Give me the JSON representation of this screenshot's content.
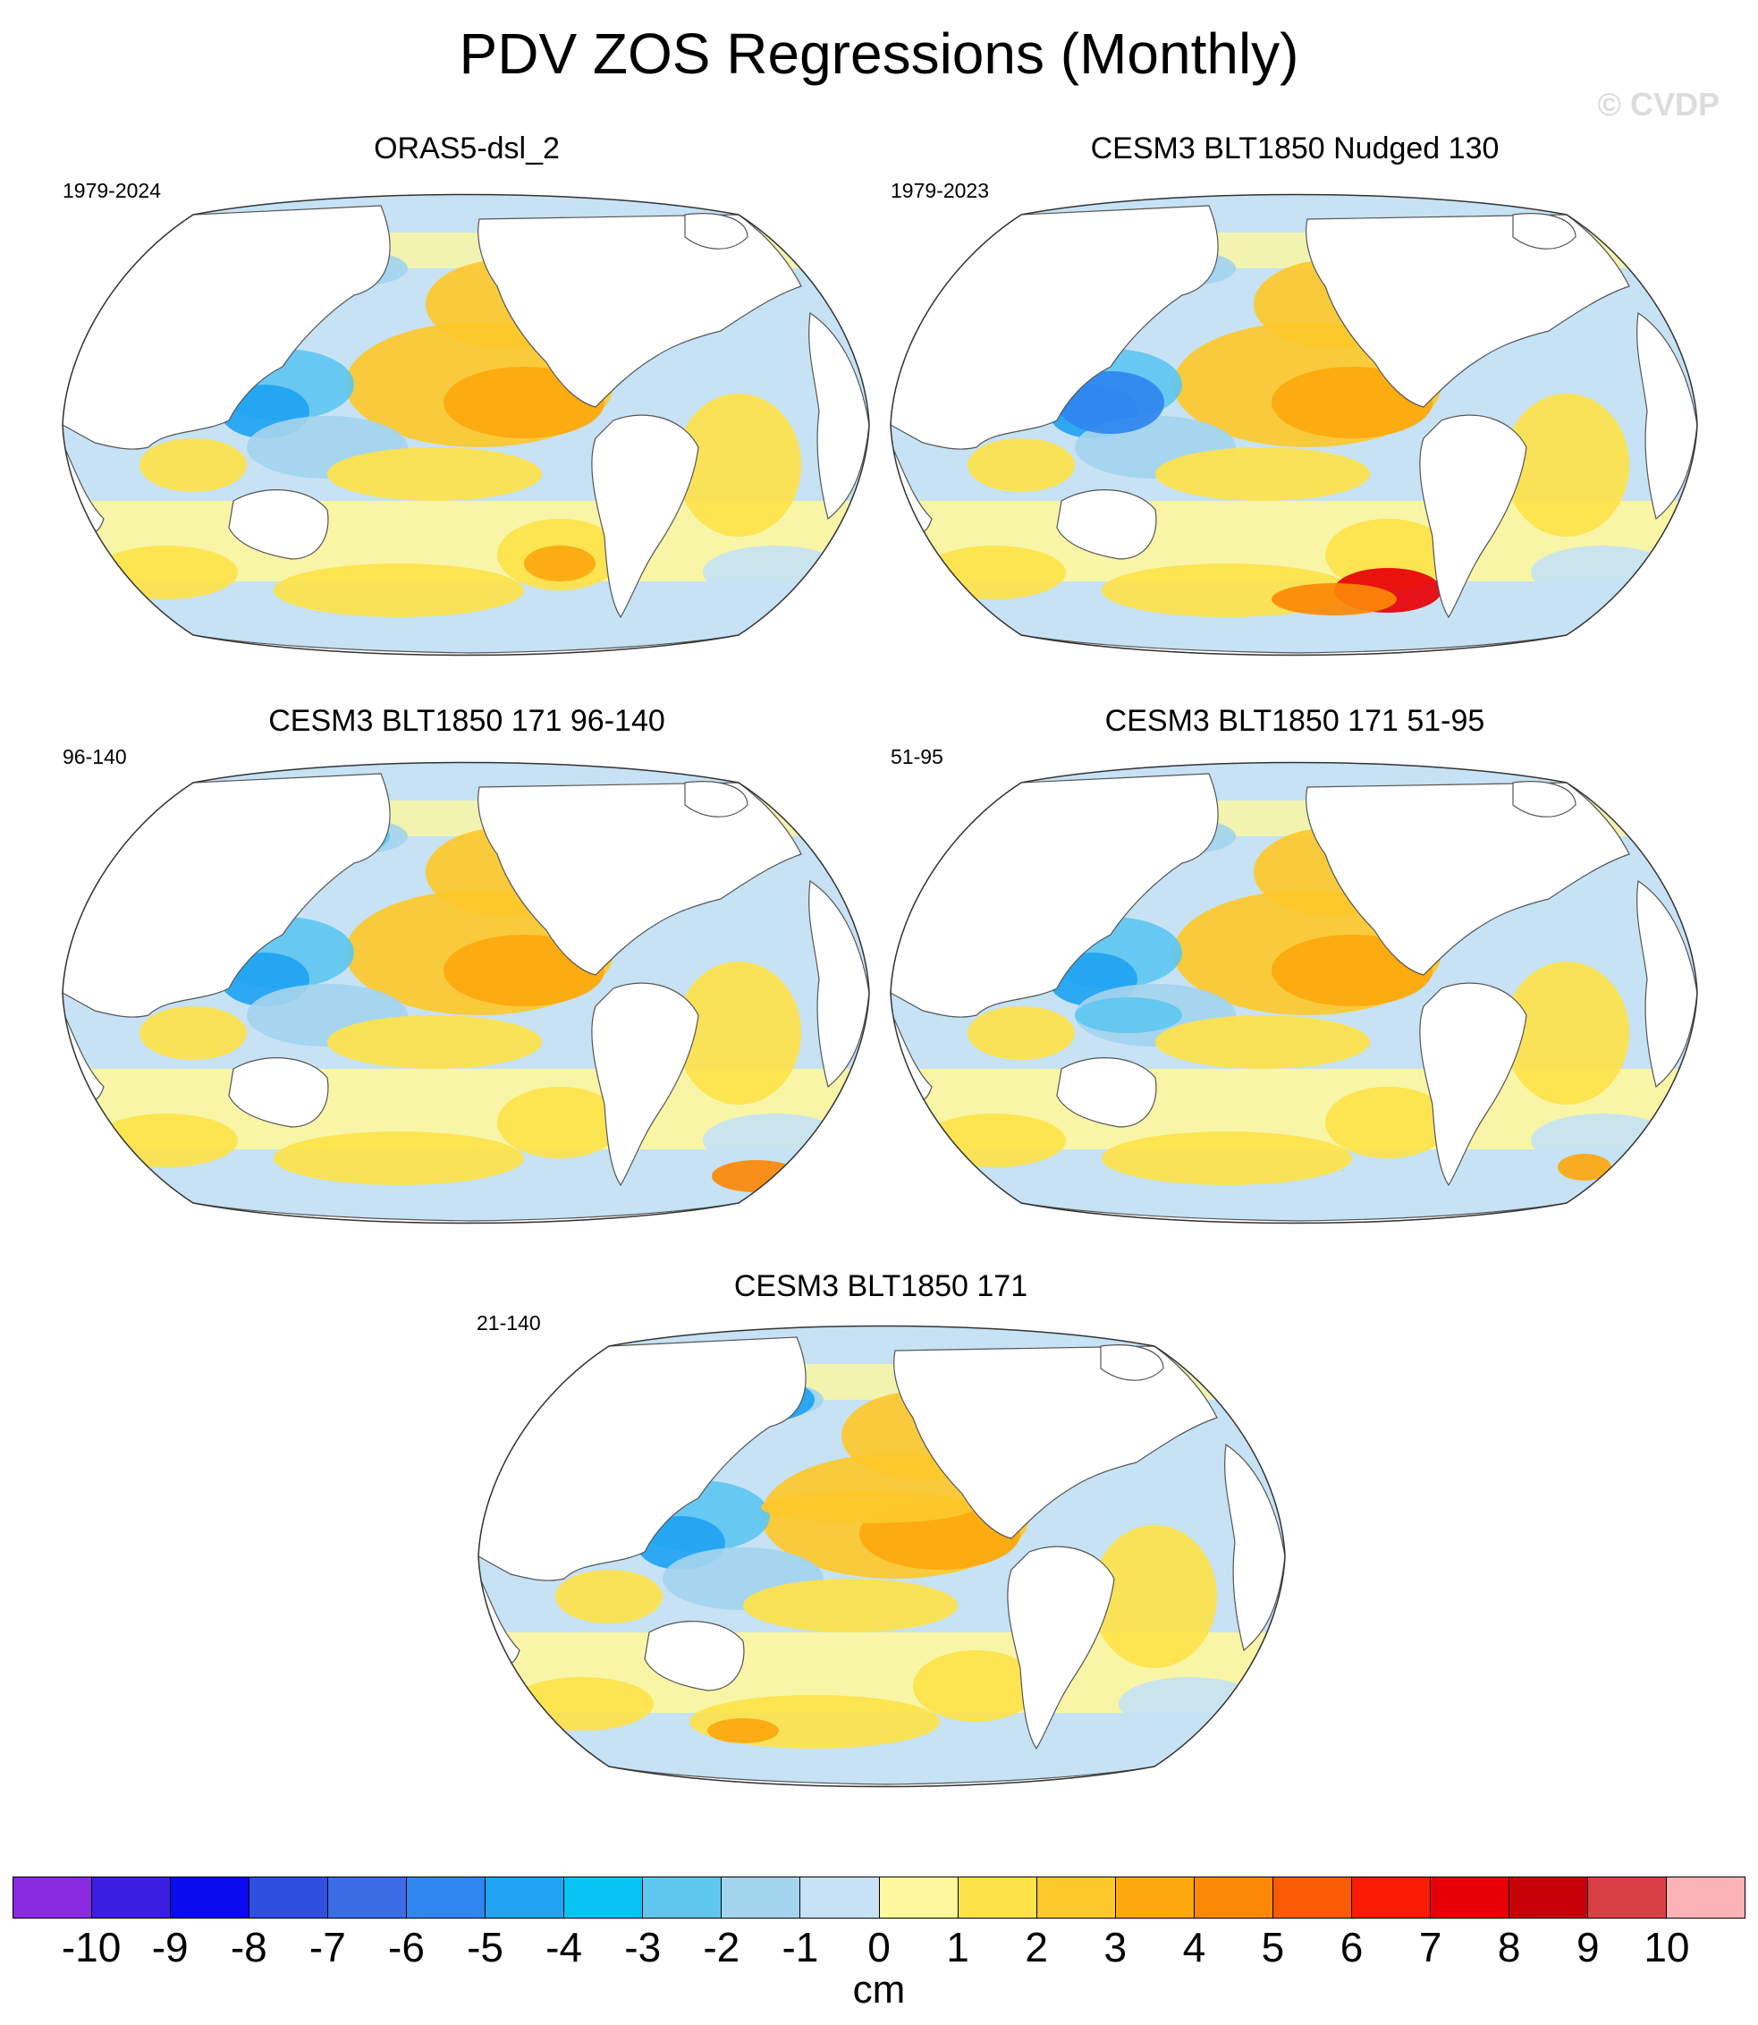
{
  "figure": {
    "title": "PDV ZOS Regressions (Monthly)",
    "watermark": "© CVDP"
  },
  "panels": [
    {
      "title": "ORAS5-dsl_2",
      "years": "1979-2024"
    },
    {
      "title": "CESM3 BLT1850 Nudged 130",
      "years": "1979-2023"
    },
    {
      "title": "CESM3 BLT1850 171 96-140",
      "years": "96-140"
    },
    {
      "title": "CESM3 BLT1850 171 51-95",
      "years": "51-95"
    },
    {
      "title": "CESM3 BLT1850 171",
      "years": "21-140"
    }
  ],
  "colorbar": {
    "units": "cm",
    "tick_labels": [
      "-10",
      "-9",
      "-8",
      "-7",
      "-6",
      "-5",
      "-4",
      "-3",
      "-2",
      "-1",
      "0",
      "1",
      "2",
      "3",
      "4",
      "5",
      "6",
      "7",
      "8",
      "9",
      "10"
    ],
    "colors": [
      "#8a2be2",
      "#3b1fe0",
      "#0a0aef",
      "#2e4fe0",
      "#3a6de6",
      "#2f86f0",
      "#1fa3f2",
      "#08c3f5",
      "#5ec7f0",
      "#a3d4ee",
      "#c6e2f4",
      "#fdf79d",
      "#fde24a",
      "#fdc82b",
      "#fca80e",
      "#fc8805",
      "#fb5b02",
      "#fb1c05",
      "#e80007",
      "#c80008",
      "#d84045",
      "#fcb3b5"
    ]
  },
  "chart_data": {
    "type": "map",
    "variable": "ZOS regression on PDV index",
    "units": "cm",
    "projection": "Robinson (Pacific-centred)",
    "color_levels": [
      -10,
      -9,
      -8,
      -7,
      -6,
      -5,
      -4,
      -3,
      -2,
      -1,
      0,
      1,
      2,
      3,
      4,
      5,
      6,
      7,
      8,
      9,
      10
    ],
    "panels": [
      {
        "name": "ORAS5-dsl_2",
        "period": "1979-2024"
      },
      {
        "name": "CESM3 BLT1850 Nudged 130",
        "period": "1979-2023"
      },
      {
        "name": "CESM3 BLT1850 171 96-140",
        "period": "96-140"
      },
      {
        "name": "CESM3 BLT1850 171 51-95",
        "period": "51-95"
      },
      {
        "name": "CESM3 BLT1850 171",
        "period": "21-140"
      }
    ]
  }
}
